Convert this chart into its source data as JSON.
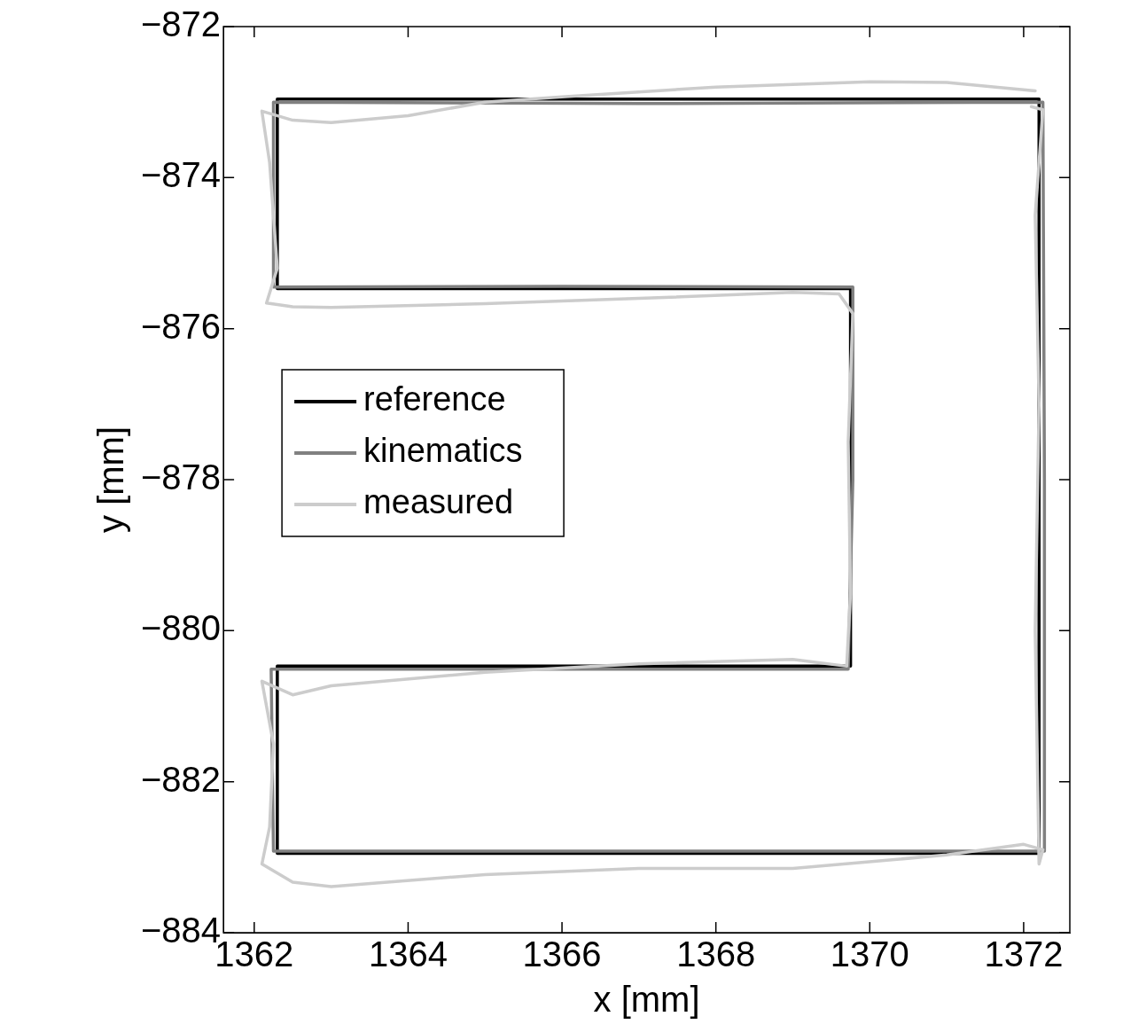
{
  "chart_data": {
    "type": "line",
    "xlabel": "x [mm]",
    "ylabel": "y [mm]",
    "xlim": [
      1361.6,
      1372.6
    ],
    "ylim": [
      -884,
      -872
    ],
    "xticks": [
      1362,
      1364,
      1366,
      1368,
      1370,
      1372
    ],
    "yticks": [
      -884,
      -882,
      -880,
      -878,
      -876,
      -874,
      -872
    ],
    "grid": false,
    "legend": "left",
    "marker": "none",
    "line_style": "solid",
    "series": [
      {
        "name": "reference",
        "color": "#000000",
        "x": [
          1362.3,
          1362.3,
          1367,
          1372.2,
          1372.2,
          1367,
          1362.3,
          1362.3,
          1366,
          1369.75,
          1369.75,
          1366,
          1362.3,
          1362.3
        ],
        "values": [
          -874,
          -872.96,
          -872.96,
          -872.96,
          -882.95,
          -882.95,
          -882.95,
          -880.47,
          -880.47,
          -880.47,
          -875.47,
          -875.47,
          -875.47,
          -873.6
        ]
      },
      {
        "name": "kinematics",
        "color": "#808080",
        "x": [
          1362.25,
          1362.25,
          1367,
          1372.25,
          1372.27,
          1372.27,
          1368,
          1362.25,
          1362.22,
          1366,
          1369.72,
          1369.78,
          1369.78,
          1366,
          1362.25,
          1362.25
        ],
        "values": [
          -874.2,
          -873.0,
          -873.02,
          -873.0,
          -878,
          -882.92,
          -882.92,
          -882.92,
          -880.51,
          -880.51,
          -880.51,
          -878,
          -875.45,
          -875.44,
          -875.45,
          -873.8
        ]
      },
      {
        "name": "measured",
        "color": "#cccccc",
        "x": [
          1372.15,
          1371,
          1370,
          1368,
          1366,
          1365,
          1364,
          1363,
          1362.5,
          1362.1,
          1362.2,
          1362.3,
          1362.16,
          1362.5,
          1363,
          1365,
          1367,
          1369,
          1369.6,
          1369.78,
          1369.72,
          1369.75,
          1369.7,
          1369,
          1367,
          1365,
          1363,
          1362.5,
          1362.1,
          1362.25,
          1362.2,
          1362.1,
          1362.5,
          1363,
          1365,
          1367,
          1369,
          1371,
          1372,
          1372.25,
          1372.2,
          1372.15,
          1372.2,
          1372.15,
          1372.25,
          1372.1
        ],
        "values": [
          -872.85,
          -872.74,
          -872.73,
          -872.8,
          -872.93,
          -873.0,
          -873.18,
          -873.27,
          -873.24,
          -873.12,
          -873.8,
          -875.2,
          -875.66,
          -875.71,
          -875.72,
          -875.67,
          -875.6,
          -875.52,
          -875.54,
          -875.8,
          -877.5,
          -879.5,
          -880.47,
          -880.38,
          -880.44,
          -880.55,
          -880.73,
          -880.85,
          -880.67,
          -881.5,
          -882.6,
          -883.09,
          -883.33,
          -883.39,
          -883.23,
          -883.15,
          -883.15,
          -882.97,
          -882.83,
          -882.9,
          -883.09,
          -880,
          -877,
          -874.5,
          -873.1,
          -873.06
        ]
      }
    ]
  }
}
